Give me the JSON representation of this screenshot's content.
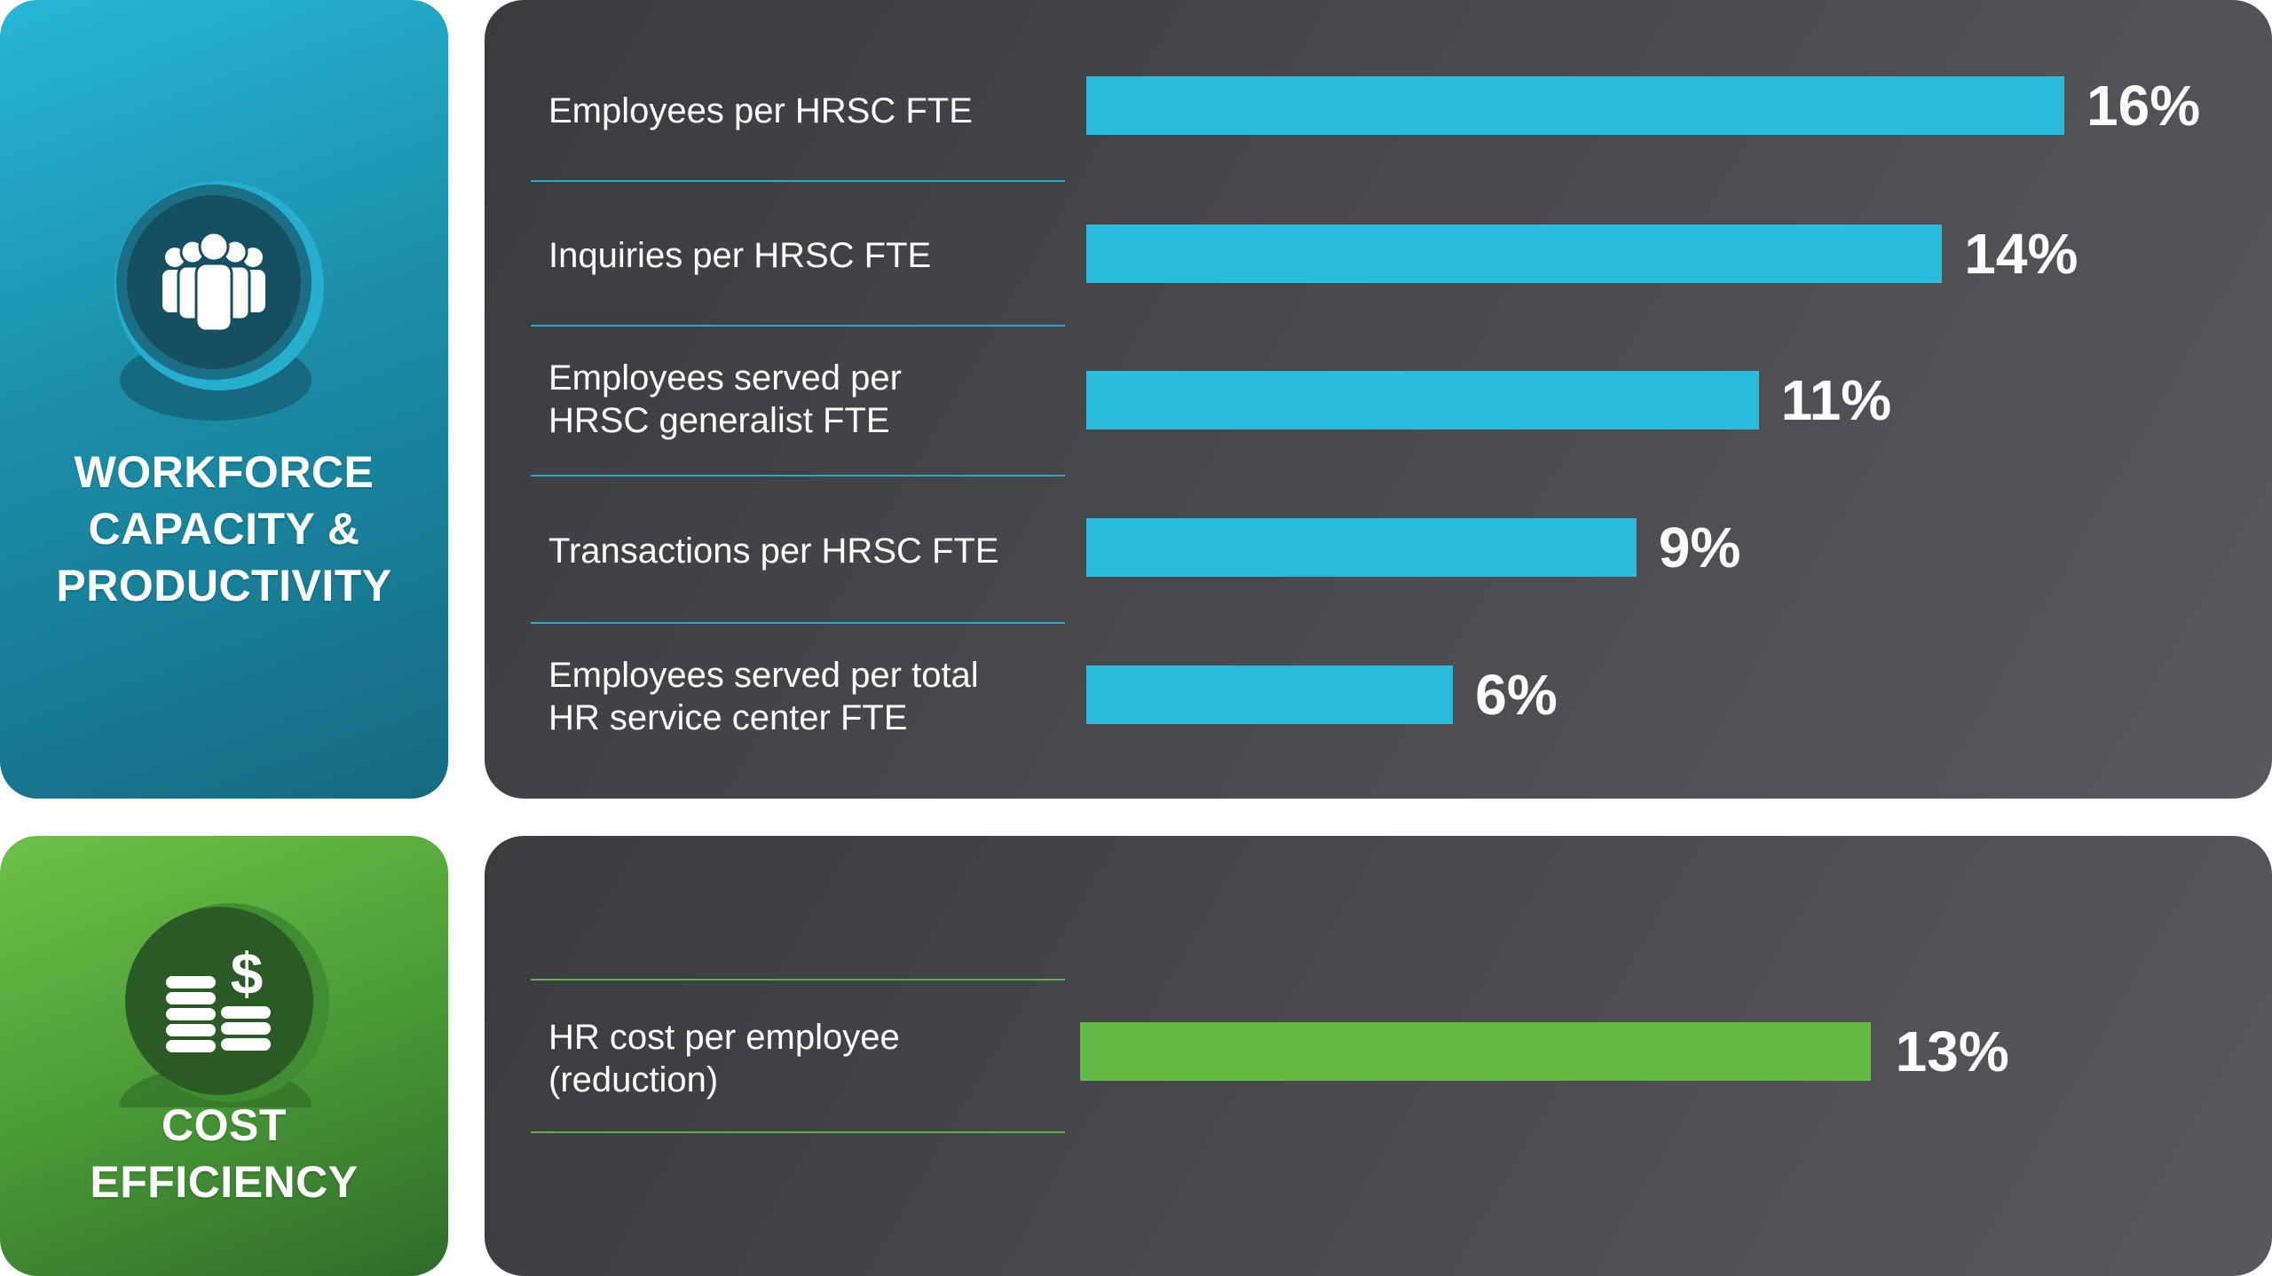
{
  "workforce": {
    "title": "WORKFORCE\nCAPACITY &\nPRODUCTIVITY",
    "icon": "people-group-icon",
    "color": "#2abcdb"
  },
  "cost": {
    "title": "COST\nEFFICIENCY",
    "icon": "coins-dollar-icon",
    "color": "#63bb46"
  },
  "chart_data": [
    {
      "type": "bar",
      "orientation": "horizontal",
      "categories": [
        "Employees per HRSC FTE",
        "Inquiries per HRSC FTE",
        "Employees served per\nHRSC generalist FTE",
        "Transactions per HRSC FTE",
        "Employees served per total\nHR service center FTE"
      ],
      "values": [
        16,
        14,
        11,
        9,
        6
      ],
      "value_labels": [
        "16%",
        "14%",
        "11%",
        "9%",
        "6%"
      ],
      "xlim": [
        0,
        16
      ],
      "color": "#2abcdb"
    },
    {
      "type": "bar",
      "orientation": "horizontal",
      "categories": [
        "HR cost per employee\n(reduction)"
      ],
      "values": [
        13
      ],
      "value_labels": [
        "13%"
      ],
      "xlim": [
        0,
        16
      ],
      "color": "#63bb46"
    }
  ]
}
